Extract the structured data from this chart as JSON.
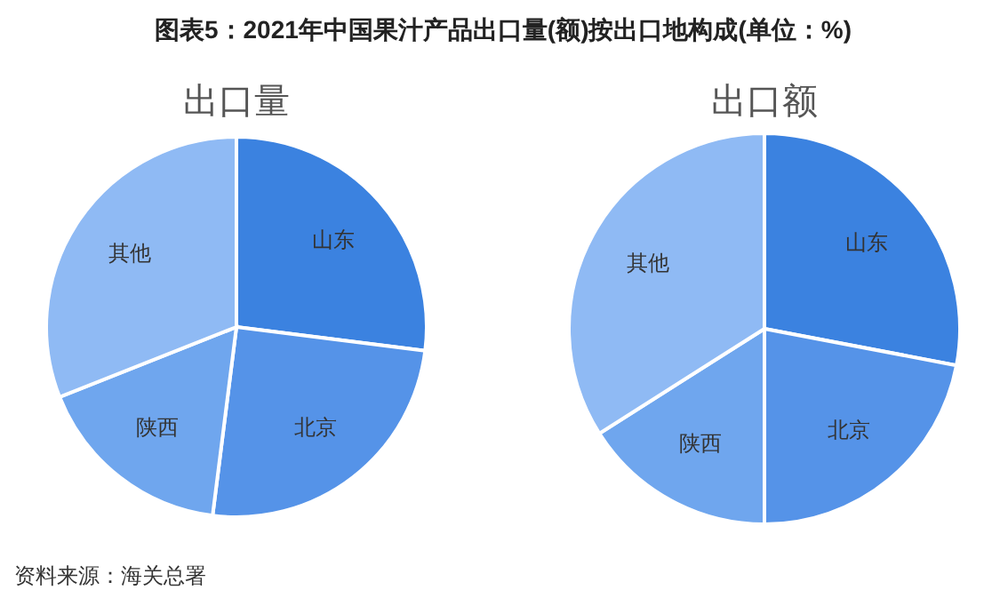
{
  "chart_data": [
    {
      "type": "other",
      "title": "图表5：2021年中国果汁产品出口量(额)按出口地构成(单位：%)",
      "annotations": [
        "资料来源：海关总署"
      ]
    },
    {
      "type": "pie",
      "title": "出口量",
      "categories": [
        "山东",
        "北京",
        "陕西",
        "其他"
      ],
      "values": [
        27,
        25,
        17,
        31
      ],
      "colors": [
        "#3b82e0",
        "#5593e8",
        "#6fa6ee",
        "#8fbaf4"
      ]
    },
    {
      "type": "pie",
      "title": "出口额",
      "categories": [
        "山东",
        "北京",
        "陕西",
        "其他"
      ],
      "values": [
        28,
        22,
        16,
        34
      ],
      "colors": [
        "#3b82e0",
        "#5593e8",
        "#6fa6ee",
        "#8fbaf4"
      ]
    }
  ]
}
